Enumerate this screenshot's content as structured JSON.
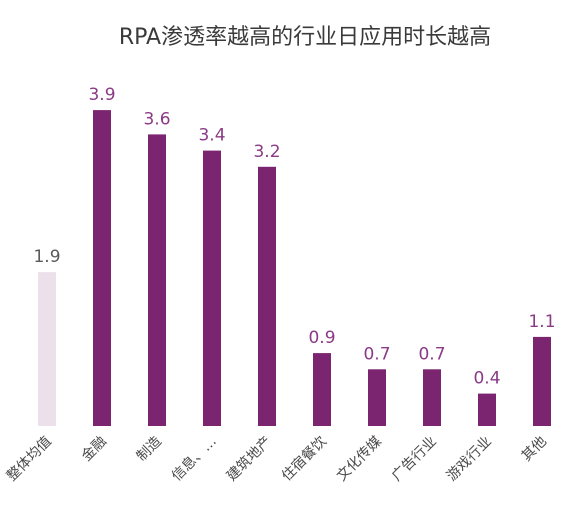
{
  "chart_data": {
    "type": "bar",
    "title": "RPA渗透率越高的行业日应用时长越高",
    "xlabel": "",
    "ylabel": "",
    "ylim": [
      0,
      4.2
    ],
    "grid": false,
    "categories": [
      "整体均值",
      "金融",
      "制造",
      "信息、…",
      "建筑地产",
      "住宿餐饮",
      "文化传媒",
      "广告行业",
      "游戏行业",
      "其他"
    ],
    "values": [
      1.9,
      3.9,
      3.6,
      3.4,
      3.2,
      0.9,
      0.7,
      0.7,
      0.4,
      1.1
    ],
    "value_labels": [
      "1.9",
      "3.9",
      "3.6",
      "3.4",
      "3.2",
      "0.9",
      "0.7",
      "0.7",
      "0.4",
      "1.1"
    ],
    "colors": {
      "bar": "#7b2470",
      "bar_baseline": "#ece1ea",
      "value_label": "#8a3a86",
      "baseline_value_label": "#5a5a5a"
    }
  }
}
